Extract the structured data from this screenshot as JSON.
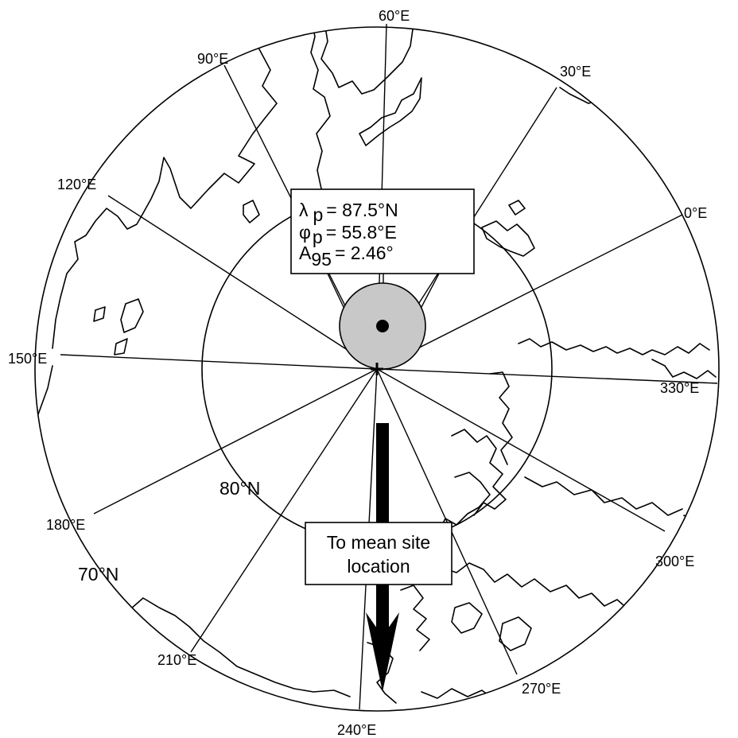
{
  "map": {
    "projection": "polar",
    "longitude_labels": [
      "0°E",
      "30°E",
      "60°E",
      "90°E",
      "120°E",
      "150°E",
      "180°E",
      "210°E",
      "240°E",
      "270°E",
      "300°E",
      "330°E"
    ],
    "latitude_labels": [
      "70°N",
      "80°N"
    ],
    "pole": {
      "lambda_label": "λ",
      "lambda_sub": "p",
      "lambda_value": "= 87.5°N",
      "phi_label": "φ",
      "phi_sub": "p",
      "phi_value": "= 55.8°E",
      "a95_label": "A",
      "a95_sub": "95",
      "a95_value": "= 2.46°"
    },
    "arrow_label_line1": "To mean site",
    "arrow_label_line2": "location",
    "colors": {
      "confidence_circle_fill": "#c8c8c8",
      "lines": "#000000"
    }
  }
}
